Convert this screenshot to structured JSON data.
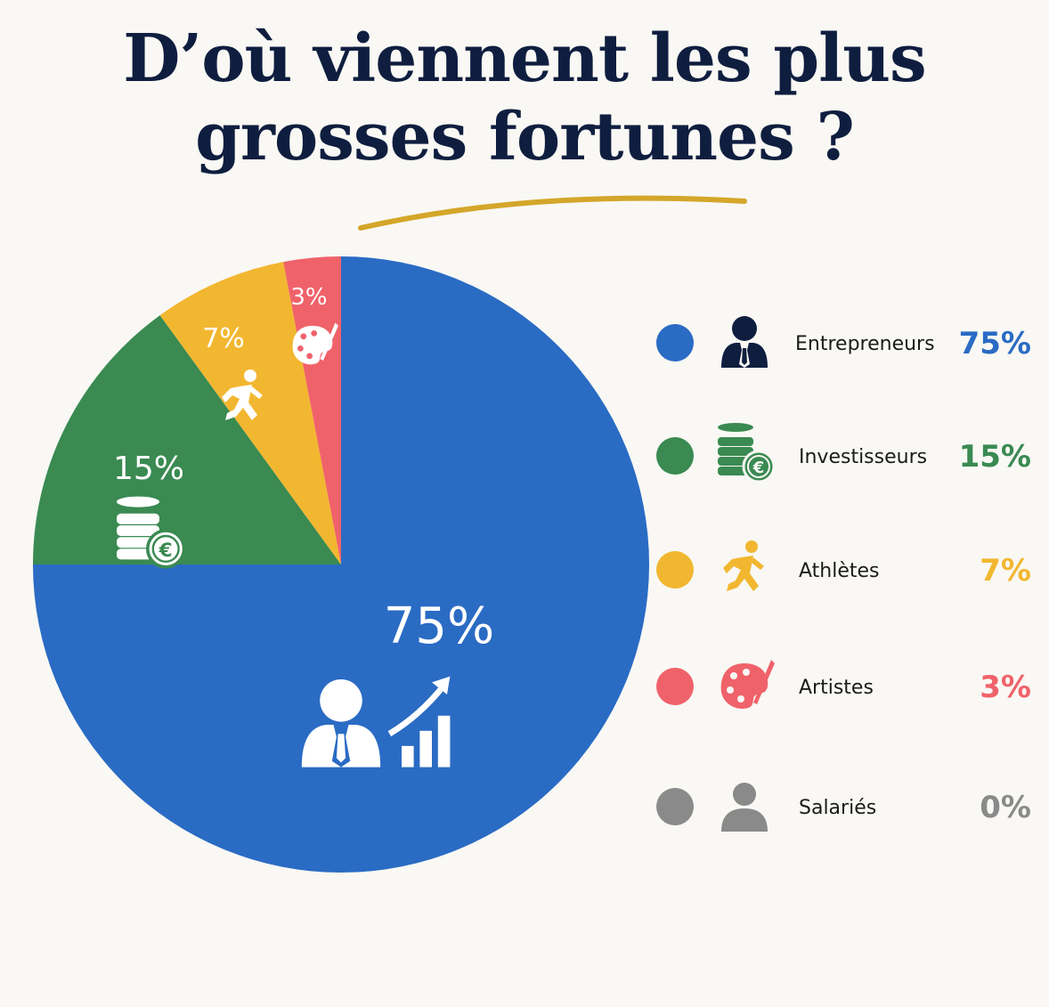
{
  "title": {
    "line1": "D’où viennent les plus",
    "line2": "grosses fortunes ?"
  },
  "colors": {
    "title": "#0f1e3f",
    "underline": "#d4a62a",
    "background": "#f9f8f4"
  },
  "chart_data": {
    "type": "pie",
    "title": "D’où viennent les plus grosses fortunes ?",
    "legend_position": "right",
    "slices": [
      {
        "label": "Entrepreneurs",
        "value": 75,
        "value_label": "75%",
        "color": "#2a6bc4",
        "icon": "businessman-growth-icon",
        "legend_icon": "businessman-icon"
      },
      {
        "label": "Investisseurs",
        "value": 15,
        "value_label": "15%",
        "color": "#3a8a52",
        "icon": "euro-coins-icon",
        "legend_icon": "euro-coins-icon"
      },
      {
        "label": "Athlètes",
        "value": 7,
        "value_label": "7%",
        "color": "#f2b730",
        "icon": "runner-icon",
        "legend_icon": "runner-icon"
      },
      {
        "label": "Artistes",
        "value": 3,
        "value_label": "3%",
        "color": "#f0626a",
        "icon": "palette-icon",
        "legend_icon": "palette-icon"
      },
      {
        "label": "Salariés",
        "value": 0,
        "value_label": "0%",
        "color": "#8a8a8a",
        "icon": "",
        "legend_icon": "person-icon"
      }
    ]
  }
}
